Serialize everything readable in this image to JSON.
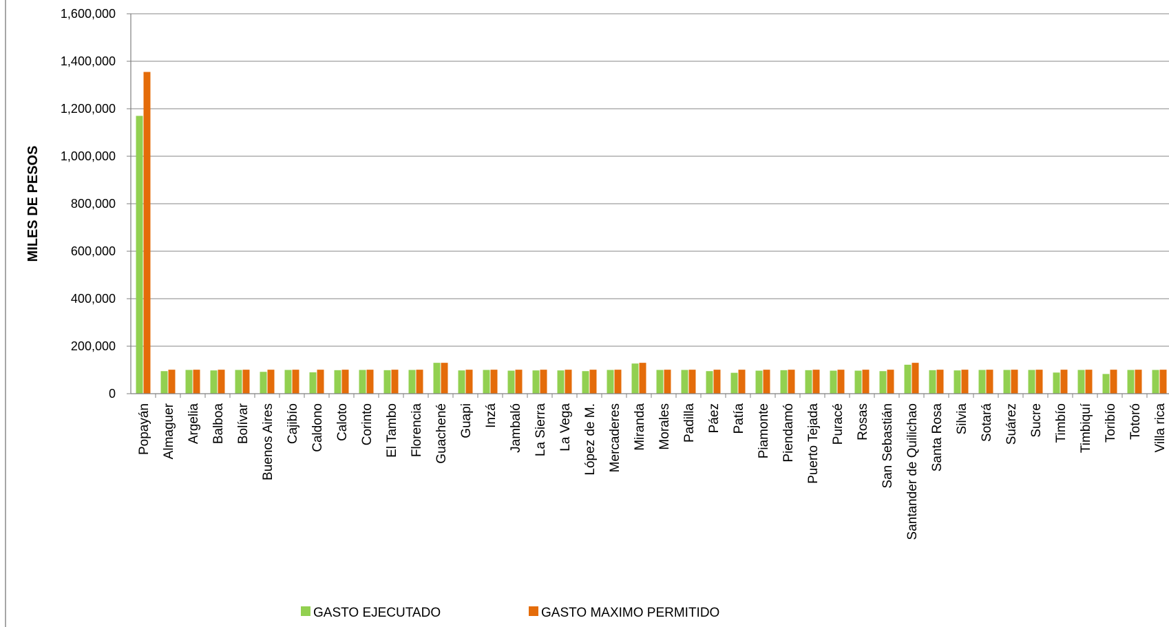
{
  "chart_data": {
    "type": "bar",
    "title": "",
    "xlabel": "",
    "ylabel": "MILES DE PESOS",
    "ylim": [
      0,
      1600000
    ],
    "yticks": [
      0,
      200000,
      400000,
      600000,
      800000,
      1000000,
      1200000,
      1400000,
      1600000
    ],
    "ytick_labels": [
      "0",
      "200,000",
      "400,000",
      "600,000",
      "800,000",
      "1,000,000",
      "1,200,000",
      "1,400,000",
      "1,600,000"
    ],
    "grid": true,
    "legend_position": "bottom",
    "categories": [
      "Popayán",
      "Almaguer",
      "Argelia",
      "Balboa",
      "Bolívar",
      "Buenos Aires",
      "Cajibío",
      "Caldono",
      "Caloto",
      "Corinto",
      "El Tambo",
      "Florencia",
      "Guachené",
      "Guapi",
      "Inzá",
      "Jambaló",
      "La Sierra",
      "La Vega",
      "López de M.",
      "Mercaderes",
      "Miranda",
      "Morales",
      "Padilla",
      "Páez",
      "Patía",
      "Piamonte",
      "Piendamó",
      "Puerto Tejada",
      "Puracé",
      "Rosas",
      "San Sebastián",
      "Santander de Quilichao",
      "Santa Rosa",
      "Silvia",
      "Sotará",
      "Suárez",
      "Sucre",
      "Timbío",
      "Timbiquí",
      "Toribío",
      "Totoró",
      "Villa rica"
    ],
    "series": [
      {
        "name": "GASTO EJECUTADO",
        "color": "#92d050",
        "values": [
          1170000,
          95000,
          100000,
          98000,
          100000,
          92000,
          100000,
          90000,
          99000,
          100000,
          99000,
          100000,
          130000,
          98000,
          100000,
          97000,
          98000,
          98000,
          95000,
          100000,
          127000,
          100000,
          100000,
          95000,
          88000,
          97000,
          99000,
          99000,
          97000,
          97000,
          95000,
          122000,
          99000,
          98000,
          100000,
          100000,
          100000,
          89000,
          100000,
          83000,
          100000,
          100000
        ]
      },
      {
        "name": "GASTO MAXIMO PERMITIDO",
        "color": "#e46c0a",
        "values": [
          1355000,
          101000,
          101000,
          101000,
          101000,
          101000,
          101000,
          101000,
          101000,
          101000,
          101000,
          101000,
          130000,
          101000,
          101000,
          101000,
          101000,
          101000,
          101000,
          101000,
          130000,
          101000,
          101000,
          101000,
          101000,
          101000,
          101000,
          101000,
          101000,
          101000,
          101000,
          130000,
          101000,
          101000,
          101000,
          101000,
          101000,
          101000,
          101000,
          101000,
          101000,
          101000
        ]
      }
    ]
  }
}
